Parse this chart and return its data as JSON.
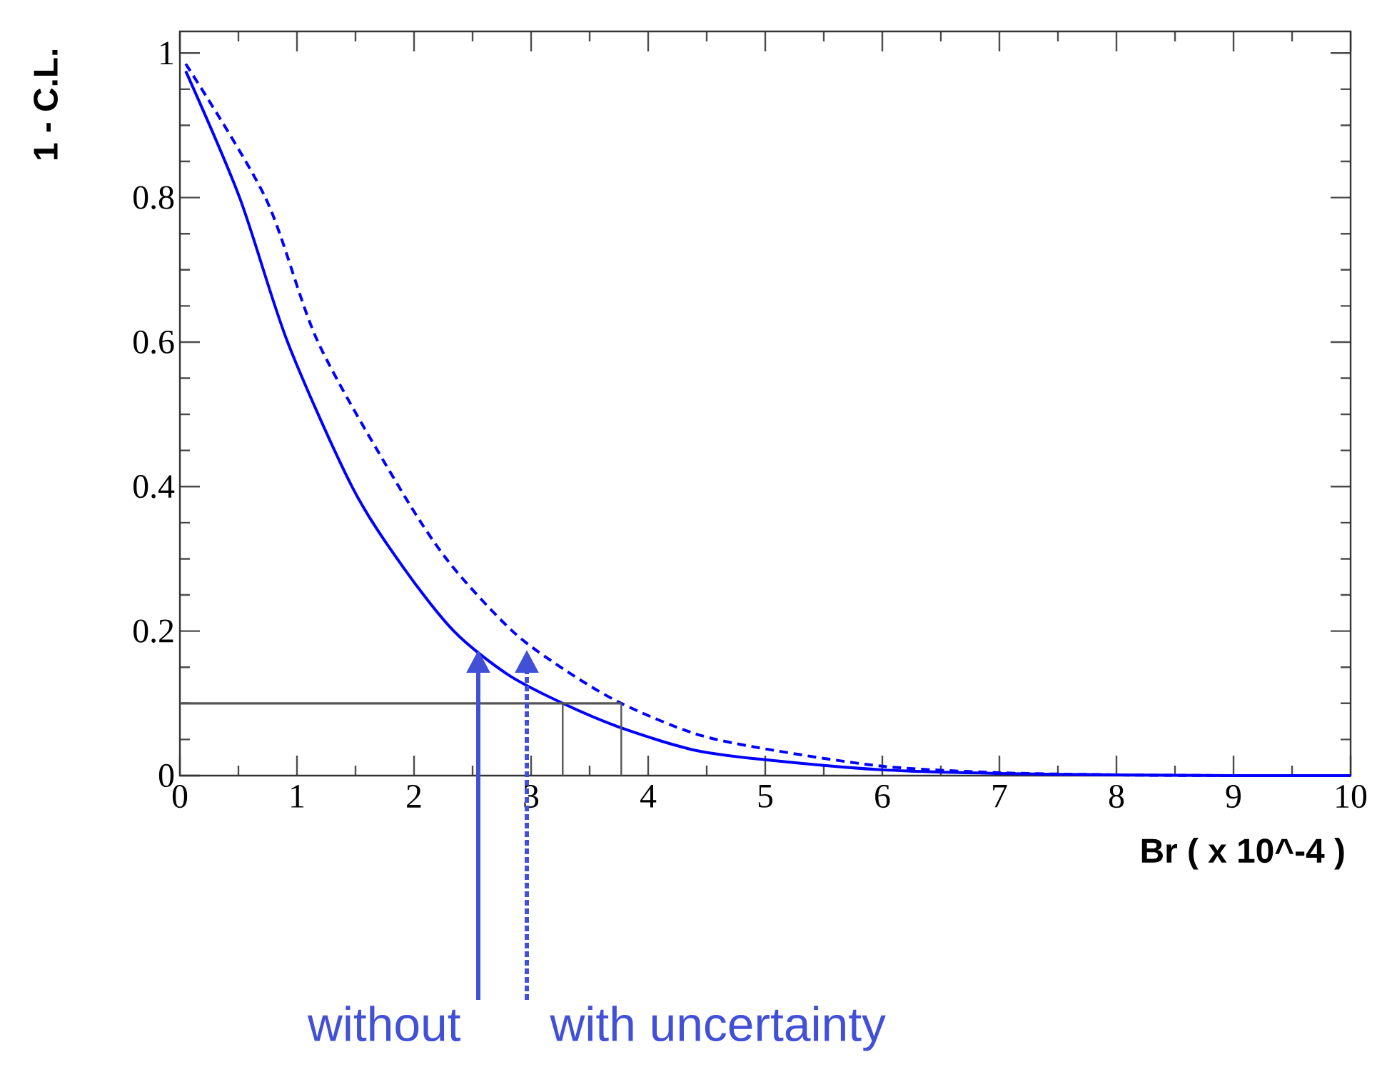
{
  "chart_data": {
    "type": "line",
    "xlabel": "Br ( x 10^-4 )",
    "ylabel": "1 - C.L.",
    "xlim": [
      0,
      10
    ],
    "ylim": [
      0,
      1.03
    ],
    "xticks": [
      0,
      1,
      2,
      3,
      4,
      5,
      6,
      7,
      8,
      9,
      10
    ],
    "yticks": [
      0,
      0.2,
      0.4,
      0.6,
      0.8,
      1
    ],
    "grid": false,
    "marker": "none",
    "series": [
      {
        "color": "#0000ff",
        "line_style": "solid",
        "x": [
          0.05,
          0.51,
          0.92,
          1.47,
          1.9,
          2.34,
          2.8,
          3.27,
          3.77,
          4.4,
          5,
          6,
          7,
          8,
          9,
          10
        ],
        "values": [
          0.975,
          0.8,
          0.6,
          0.4,
          0.29,
          0.2,
          0.14,
          0.1,
          0.066,
          0.035,
          0.022,
          0.008,
          0.003,
          0.001,
          0,
          0
        ]
      },
      {
        "color": "#0000ff",
        "line_style": "dashed",
        "x": [
          0.05,
          0.73,
          1.18,
          1.87,
          2.3,
          2.84,
          3.3,
          3.77,
          4.4,
          5,
          6,
          7,
          8,
          9,
          10
        ],
        "values": [
          0.985,
          0.8,
          0.6,
          0.4,
          0.295,
          0.2,
          0.145,
          0.1,
          0.058,
          0.037,
          0.013,
          0.004,
          0.001,
          0,
          0
        ]
      }
    ],
    "ref_lines": [
      {
        "axis": "y",
        "value": 0.1,
        "color": "#555555"
      },
      {
        "axis": "x",
        "value": 3.27,
        "color": "#555555"
      },
      {
        "axis": "x",
        "value": 3.77,
        "color": "#555555"
      }
    ],
    "annotations": [
      "without",
      "with uncertainty"
    ]
  }
}
